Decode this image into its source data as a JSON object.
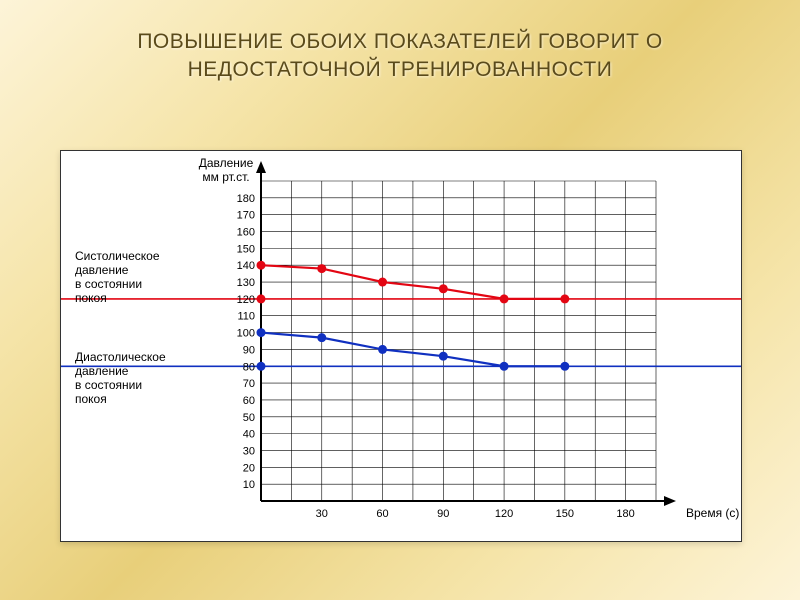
{
  "title": "ПОВЫШЕНИЕ ОБОИХ ПОКАЗАТЕЛЕЙ ГОВОРИТ О НЕДОСТАТОЧНОЙ ТРЕНИРОВАННОСТИ",
  "chart": {
    "type": "line",
    "background_color": "#ffffff",
    "grid_color": "#000000",
    "grid_line_width": 0.6,
    "axis_color": "#000000",
    "axis_line_width": 2,
    "y_axis": {
      "title_line1": "Давление",
      "title_line2": "мм рт.ст.",
      "min": 0,
      "max": 190,
      "tick_step": 10,
      "tick_labels": [
        10,
        20,
        30,
        40,
        50,
        60,
        70,
        80,
        90,
        100,
        110,
        120,
        130,
        140,
        150,
        160,
        170,
        180
      ],
      "fontsize": 11
    },
    "x_axis": {
      "title": "Время (с)",
      "min": 0,
      "max": 195,
      "tick_step": 15,
      "tick_labels": [
        30,
        60,
        90,
        120,
        150,
        180
      ],
      "fontsize": 11
    },
    "labels": {
      "systolic_line1": "Систолическое",
      "systolic_line2": "давление",
      "systolic_line3": "в состоянии",
      "systolic_line4": "покоя",
      "diastolic_line1": "Диастолическое",
      "diastolic_line2": "давление",
      "diastolic_line3": "в состоянии",
      "diastolic_line4": "покоя",
      "fontsize": 12
    },
    "series": {
      "systolic": {
        "color": "#e30613",
        "baseline": 120,
        "line_width": 2.2,
        "marker_radius": 4.5,
        "points": [
          {
            "x": 0,
            "y": 140
          },
          {
            "x": 30,
            "y": 138
          },
          {
            "x": 60,
            "y": 130
          },
          {
            "x": 90,
            "y": 126
          },
          {
            "x": 120,
            "y": 120
          },
          {
            "x": 150,
            "y": 120
          }
        ]
      },
      "diastolic": {
        "color": "#1030c0",
        "baseline": 80,
        "line_width": 2.2,
        "marker_radius": 4.5,
        "points": [
          {
            "x": 0,
            "y": 100
          },
          {
            "x": 30,
            "y": 97
          },
          {
            "x": 60,
            "y": 90
          },
          {
            "x": 90,
            "y": 86
          },
          {
            "x": 120,
            "y": 80
          },
          {
            "x": 150,
            "y": 80
          }
        ]
      }
    }
  }
}
